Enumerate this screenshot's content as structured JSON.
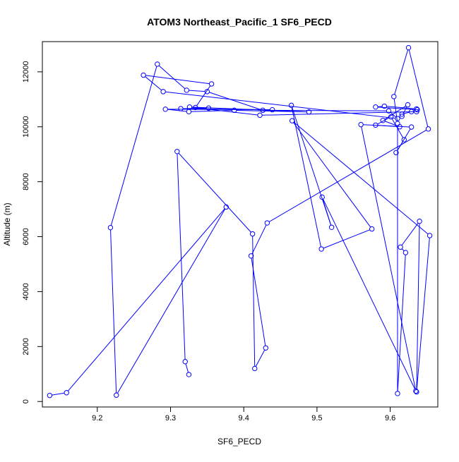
{
  "chart_data": {
    "type": "line",
    "title": "ATOM3 Northeast_Pacific_1 SF6_PECD",
    "xlabel": "SF6_PECD",
    "ylabel": "Altitude (m)",
    "xlim": [
      9.125,
      9.665
    ],
    "ylim": [
      -200,
      13100
    ],
    "xticks": [
      9.2,
      9.3,
      9.4,
      9.5,
      9.6
    ],
    "yticks": [
      0,
      2000,
      4000,
      6000,
      8000,
      10000,
      12000
    ],
    "grid": false,
    "legend": "none",
    "line_color": "#0000ff",
    "marker": "open-circle",
    "series": [
      {
        "x": [
          9.135,
          9.158,
          9.376,
          9.226,
          9.218,
          9.282,
          9.322,
          9.35,
          9.426,
          9.598,
          9.61,
          9.29,
          9.263,
          9.356,
          9.334,
          9.352,
          9.314,
          9.439,
          9.293,
          9.325,
          9.387,
          9.489,
          9.326,
          9.422,
          9.636,
          9.636,
          9.592,
          9.58,
          9.637,
          9.629,
          9.616,
          9.616,
          9.624,
          9.59,
          9.613,
          9.58,
          9.601,
          9.619,
          9.608,
          9.629,
          9.56,
          9.635,
          9.507,
          9.52,
          9.465,
          9.506,
          9.575,
          9.466,
          9.654,
          9.636,
          9.64,
          9.614,
          9.621,
          9.61,
          9.61,
          9.605,
          9.625,
          9.652,
          9.432,
          9.41,
          9.43,
          9.415,
          9.412,
          9.309,
          9.32,
          9.325
        ],
        "y": [
          220,
          320,
          7080,
          230,
          6330,
          12280,
          11330,
          11280,
          10600,
          10580,
          10300,
          11280,
          11880,
          11560,
          10700,
          10680,
          10660,
          10620,
          10640,
          10550,
          10600,
          10540,
          10720,
          10420,
          10550,
          10650,
          10750,
          10720,
          10620,
          10550,
          10460,
          10380,
          10800,
          10230,
          10000,
          10060,
          10360,
          9530,
          9060,
          9990,
          10080,
          380,
          7440,
          6340,
          10780,
          5550,
          6280,
          10220,
          6040,
          350,
          6560,
          5620,
          5420,
          290,
          10120,
          11100,
          12880,
          9920,
          6500,
          5300,
          1950,
          1200,
          6100,
          9100,
          1450,
          980
        ]
      }
    ]
  }
}
